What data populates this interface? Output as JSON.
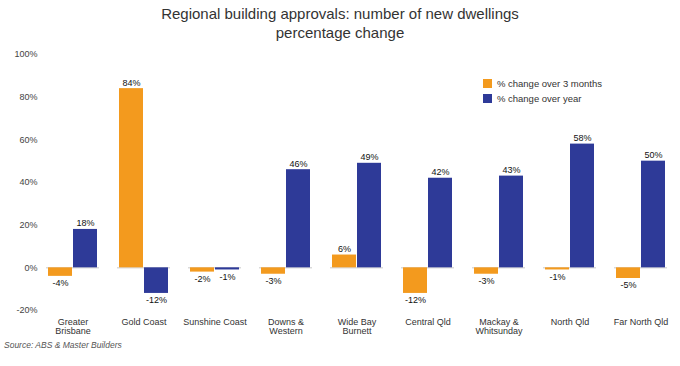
{
  "chart_data": {
    "type": "bar",
    "title": "Regional building approvals: number of new dwellings\npercentage change",
    "caption": "Source: ABS & Master Builders",
    "categories": [
      "Greater Brisbane",
      "Gold Coast",
      "Sunshine Coast",
      "Downs & Western",
      "Wide Bay Burnett",
      "Central Qld",
      "Mackay & Whitsunday",
      "North Qld",
      "Far North Qld"
    ],
    "series": [
      {
        "name": "% change over 3 months",
        "color": "#F39A1E",
        "values": [
          -4,
          84,
          -2,
          -3,
          6,
          -12,
          -3,
          -1,
          -5
        ],
        "value_labels": [
          "-4%",
          "84%",
          "-2%",
          "-3%",
          "6%",
          "-12%",
          "-3%",
          "-1%",
          "-5%"
        ]
      },
      {
        "name": "% change over year",
        "color": "#2E3A98",
        "values": [
          18,
          -12,
          -1,
          46,
          49,
          42,
          43,
          58,
          50
        ],
        "value_labels": [
          "18%",
          "-12%",
          "-1%",
          "46%",
          "49%",
          "42%",
          "43%",
          "58%",
          "50%"
        ]
      }
    ],
    "ylim": [
      -20,
      100
    ],
    "yticks": [
      {
        "value": -20,
        "label": "-20%"
      },
      {
        "value": 0,
        "label": "0%"
      },
      {
        "value": 20,
        "label": "20%"
      },
      {
        "value": 40,
        "label": "40%"
      },
      {
        "value": 60,
        "label": "60%"
      },
      {
        "value": 80,
        "label": "80%"
      },
      {
        "value": 100,
        "label": "100%"
      }
    ],
    "grid": false,
    "legend": "top-right",
    "data_labels": true
  }
}
